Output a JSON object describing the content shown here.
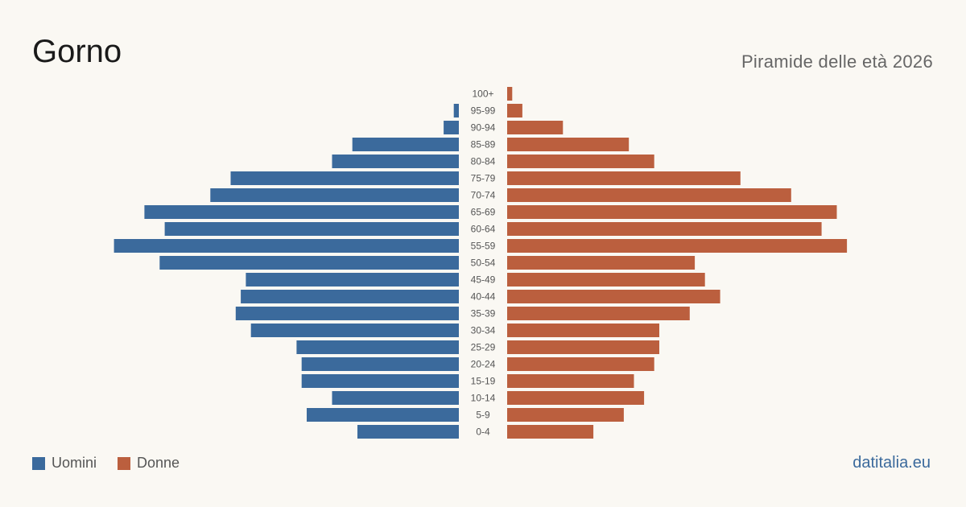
{
  "header": {
    "title": "Gorno",
    "subtitle": "Piramide delle età 2026"
  },
  "legend": {
    "men_label": "Uomini",
    "women_label": "Donne"
  },
  "brand": "datitalia.eu",
  "colors": {
    "men": "#3b6a9c",
    "women": "#bb5f3e",
    "background": "#faf8f3"
  },
  "chart_data": {
    "type": "bar",
    "orientation": "horizontal-pyramid",
    "categories": [
      "100+",
      "95-99",
      "90-94",
      "85-89",
      "80-84",
      "75-79",
      "70-74",
      "65-69",
      "60-64",
      "55-59",
      "50-54",
      "45-49",
      "40-44",
      "35-39",
      "30-34",
      "25-29",
      "20-24",
      "15-19",
      "10-14",
      "5-9",
      "0-4"
    ],
    "series": [
      {
        "name": "Uomini",
        "values": [
          0,
          1,
          3,
          21,
          25,
          45,
          49,
          62,
          58,
          68,
          59,
          42,
          43,
          44,
          41,
          32,
          31,
          31,
          25,
          30,
          20
        ]
      },
      {
        "name": "Donne",
        "values": [
          1,
          3,
          11,
          24,
          29,
          46,
          56,
          65,
          62,
          67,
          37,
          39,
          42,
          36,
          30,
          30,
          29,
          25,
          27,
          23,
          17
        ]
      }
    ]
  }
}
